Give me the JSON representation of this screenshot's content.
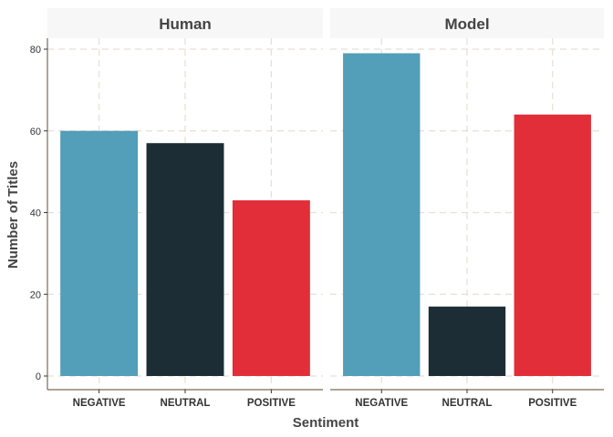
{
  "chart_data": {
    "type": "bar",
    "facets": [
      "Human",
      "Model"
    ],
    "categories": [
      "NEGATIVE",
      "NEUTRAL",
      "POSITIVE"
    ],
    "colors": {
      "NEGATIVE": "#539eb8",
      "NEUTRAL": "#1d2d35",
      "POSITIVE": "#e22e39"
    },
    "series": [
      {
        "facet": "Human",
        "values": [
          60,
          57,
          43
        ]
      },
      {
        "facet": "Model",
        "values": [
          79,
          17,
          64
        ]
      }
    ],
    "xlabel": "Sentiment",
    "ylabel": "Number of Titles",
    "ylim": [
      0,
      83
    ],
    "yticks": [
      0,
      20,
      40,
      60,
      80
    ],
    "grid": true,
    "legend": "none"
  }
}
